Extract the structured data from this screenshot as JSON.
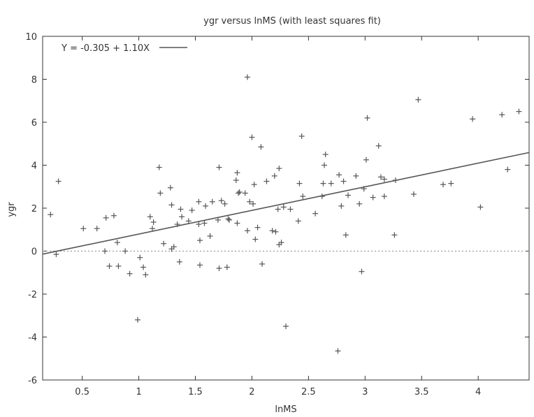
{
  "chart_data": {
    "type": "scatter",
    "title": "ygr versus lnMS (with least squares fit)",
    "xlabel": "lnMS",
    "ylabel": "ygr",
    "xlim": [
      0.15,
      4.45
    ],
    "ylim": [
      -6,
      10
    ],
    "x_ticks": [
      "0.5",
      "1",
      "1.5",
      "2",
      "2.5",
      "3",
      "3.5",
      "4"
    ],
    "y_ticks": [
      "-6",
      "-4",
      "-2",
      "0",
      "2",
      "4",
      "6",
      "8",
      "10"
    ],
    "grid": false,
    "zero_line": true,
    "legend_position": "top-left",
    "fit": {
      "label": "Y = -0.305 + 1.10X",
      "intercept": -0.305,
      "slope": 1.1
    },
    "colors": {
      "points": "#555555",
      "fit_line": "#555555",
      "zero_line": "#888888"
    },
    "points": [
      [
        0.22,
        1.7
      ],
      [
        0.27,
        -0.15
      ],
      [
        0.29,
        3.25
      ],
      [
        0.51,
        1.05
      ],
      [
        0.63,
        1.05
      ],
      [
        0.7,
        0.0
      ],
      [
        0.71,
        1.55
      ],
      [
        0.74,
        -0.7
      ],
      [
        0.78,
        1.65
      ],
      [
        0.81,
        0.4
      ],
      [
        0.82,
        -0.7
      ],
      [
        0.88,
        0.0
      ],
      [
        0.92,
        -1.05
      ],
      [
        0.99,
        -3.2
      ],
      [
        1.01,
        -0.3
      ],
      [
        1.04,
        -0.75
      ],
      [
        1.06,
        -1.1
      ],
      [
        1.1,
        1.6
      ],
      [
        1.12,
        1.05
      ],
      [
        1.13,
        1.35
      ],
      [
        1.18,
        3.9
      ],
      [
        1.19,
        2.7
      ],
      [
        1.22,
        0.35
      ],
      [
        1.28,
        2.95
      ],
      [
        1.29,
        0.1
      ],
      [
        1.29,
        2.15
      ],
      [
        1.31,
        0.2
      ],
      [
        1.34,
        1.25
      ],
      [
        1.36,
        -0.5
      ],
      [
        1.37,
        1.95
      ],
      [
        1.38,
        1.6
      ],
      [
        1.44,
        1.4
      ],
      [
        1.47,
        1.9
      ],
      [
        1.53,
        1.25
      ],
      [
        1.53,
        2.3
      ],
      [
        1.54,
        0.5
      ],
      [
        1.54,
        -0.65
      ],
      [
        1.58,
        1.3
      ],
      [
        1.59,
        2.1
      ],
      [
        1.63,
        0.7
      ],
      [
        1.65,
        2.3
      ],
      [
        1.7,
        1.45
      ],
      [
        1.71,
        3.9
      ],
      [
        1.71,
        -0.8
      ],
      [
        1.73,
        2.35
      ],
      [
        1.76,
        2.2
      ],
      [
        1.78,
        -0.75
      ],
      [
        1.79,
        1.5
      ],
      [
        1.8,
        1.45
      ],
      [
        1.86,
        3.3
      ],
      [
        1.87,
        3.65
      ],
      [
        1.87,
        1.3
      ],
      [
        1.88,
        2.7
      ],
      [
        1.89,
        2.75
      ],
      [
        1.94,
        2.7
      ],
      [
        1.96,
        0.95
      ],
      [
        1.96,
        8.1
      ],
      [
        1.98,
        2.3
      ],
      [
        2.0,
        5.3
      ],
      [
        2.01,
        2.2
      ],
      [
        2.02,
        3.1
      ],
      [
        2.03,
        0.55
      ],
      [
        2.05,
        1.1
      ],
      [
        2.08,
        4.85
      ],
      [
        2.09,
        -0.6
      ],
      [
        2.13,
        3.25
      ],
      [
        2.18,
        0.95
      ],
      [
        2.2,
        3.5
      ],
      [
        2.21,
        0.9
      ],
      [
        2.23,
        1.95
      ],
      [
        2.24,
        3.85
      ],
      [
        2.24,
        0.3
      ],
      [
        2.26,
        0.4
      ],
      [
        2.28,
        2.05
      ],
      [
        2.3,
        -3.5
      ],
      [
        2.34,
        1.95
      ],
      [
        2.41,
        1.4
      ],
      [
        2.42,
        3.15
      ],
      [
        2.44,
        5.35
      ],
      [
        2.45,
        2.55
      ],
      [
        2.56,
        1.75
      ],
      [
        2.62,
        2.55
      ],
      [
        2.63,
        3.15
      ],
      [
        2.64,
        4.0
      ],
      [
        2.65,
        4.5
      ],
      [
        2.7,
        3.15
      ],
      [
        2.76,
        -4.65
      ],
      [
        2.77,
        3.55
      ],
      [
        2.79,
        2.1
      ],
      [
        2.81,
        3.25
      ],
      [
        2.83,
        0.75
      ],
      [
        2.85,
        2.6
      ],
      [
        2.92,
        3.5
      ],
      [
        2.95,
        2.2
      ],
      [
        2.97,
        -0.95
      ],
      [
        2.99,
        2.9
      ],
      [
        3.01,
        4.25
      ],
      [
        3.02,
        6.2
      ],
      [
        3.07,
        2.5
      ],
      [
        3.12,
        4.9
      ],
      [
        3.14,
        3.45
      ],
      [
        3.17,
        3.35
      ],
      [
        3.17,
        2.55
      ],
      [
        3.26,
        0.75
      ],
      [
        3.27,
        3.3
      ],
      [
        3.43,
        2.65
      ],
      [
        3.47,
        7.05
      ],
      [
        3.69,
        3.1
      ],
      [
        3.76,
        3.15
      ],
      [
        3.95,
        6.15
      ],
      [
        4.02,
        2.05
      ],
      [
        4.21,
        6.35
      ],
      [
        4.26,
        3.8
      ],
      [
        4.36,
        6.5
      ]
    ]
  }
}
